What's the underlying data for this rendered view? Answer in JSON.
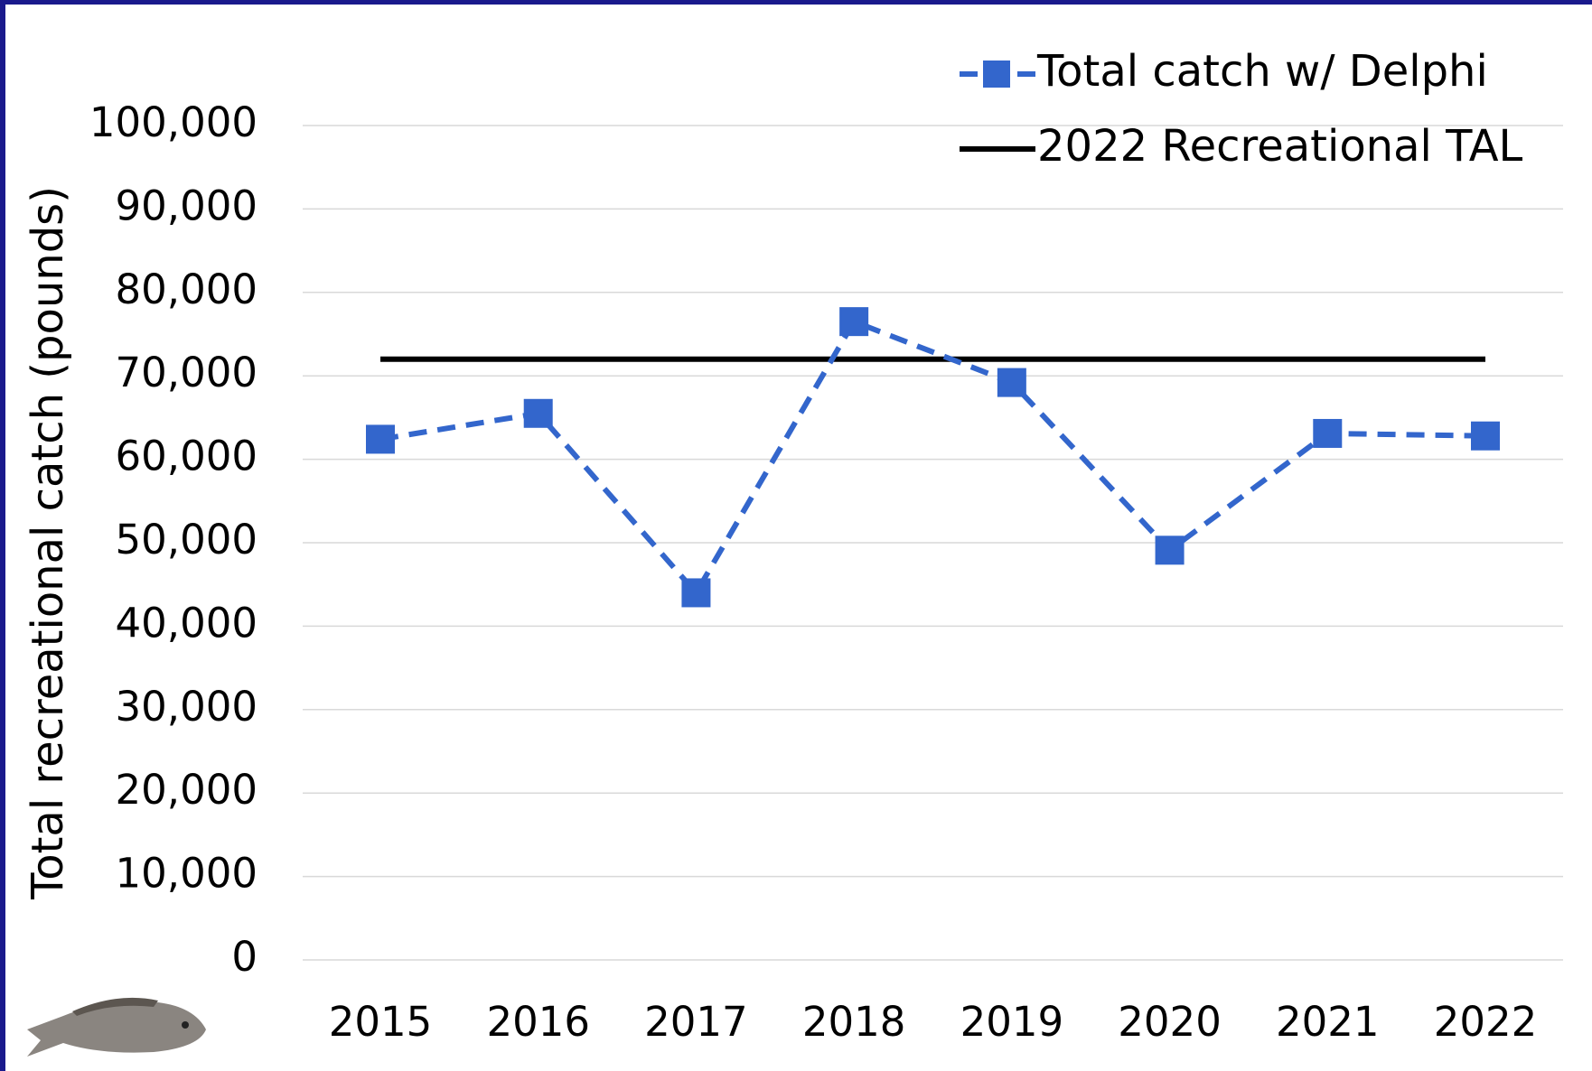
{
  "chart_data": {
    "type": "line",
    "y_label": "Total recreational catch (pounds)",
    "categories": [
      "2015",
      "2016",
      "2017",
      "2018",
      "2019",
      "2020",
      "2021",
      "2022"
    ],
    "series": [
      {
        "name": "Total catch w/ Delphi",
        "color": "#3366cc",
        "line_style": "dashed",
        "marker": "square",
        "values": [
          62400,
          65500,
          44000,
          76500,
          69200,
          49100,
          63100,
          62800
        ]
      },
      {
        "name": "2022 Recreational TAL",
        "color": "#000000",
        "line_style": "solid",
        "values": [
          72000,
          72000,
          72000,
          72000,
          72000,
          72000,
          72000,
          72000
        ]
      }
    ],
    "ylim": [
      0,
      100000
    ],
    "yticks": [
      0,
      {
        "value": 10000,
        "label": "10,000"
      },
      {
        "value": 20000,
        "label": "20,000"
      },
      {
        "value": 30000,
        "label": "30,000"
      },
      {
        "value": 40000,
        "label": "40,000"
      },
      {
        "value": 50000,
        "label": "50,000"
      },
      {
        "value": 60000,
        "label": "60,000"
      },
      {
        "value": 70000,
        "label": "70,000"
      },
      {
        "value": 80000,
        "label": "80,000"
      },
      {
        "value": 90000,
        "label": "90,000"
      },
      {
        "value": 100000,
        "label": "100,000"
      }
    ],
    "grid": true,
    "legend": "top-right"
  }
}
